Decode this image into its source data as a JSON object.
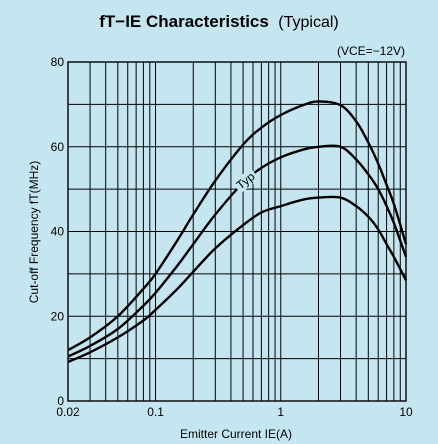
{
  "chart_data": {
    "type": "line",
    "title": {
      "bold": "fT−IE Characteristics",
      "normal": "(Typical)"
    },
    "condition": "(VCE=−12V)",
    "xlabel": "Emitter Current IE(A)",
    "ylabel": "Cut-off Frequency fT(MHz)",
    "x_scale": "log",
    "xlim": [
      0.02,
      10
    ],
    "ylim": [
      0,
      80
    ],
    "x_ticks": [
      {
        "value": 0.02,
        "label": "0.02"
      },
      {
        "value": 0.1,
        "label": "0.1"
      },
      {
        "value": 1,
        "label": "1"
      },
      {
        "value": 10,
        "label": "10"
      }
    ],
    "y_ticks": [
      {
        "value": 0,
        "label": "0"
      },
      {
        "value": 20,
        "label": "20"
      },
      {
        "value": 40,
        "label": "40"
      },
      {
        "value": 60,
        "label": "60"
      },
      {
        "value": 80,
        "label": "80"
      }
    ],
    "grid": true,
    "annotation": "Typ",
    "series": [
      {
        "x": [
          0.02,
          0.03,
          0.05,
          0.08,
          0.1,
          0.15,
          0.2,
          0.3,
          0.5,
          0.7,
          1,
          1.5,
          2,
          3,
          4,
          5,
          6,
          7,
          8,
          10
        ],
        "y": [
          12,
          15,
          20,
          26.5,
          30,
          38,
          44,
          52,
          60.5,
          64.5,
          67.5,
          69.8,
          70.7,
          69.8,
          66,
          61,
          56,
          51,
          46.5,
          37
        ]
      },
      {
        "x": [
          0.02,
          0.03,
          0.05,
          0.08,
          0.1,
          0.15,
          0.2,
          0.3,
          0.5,
          0.7,
          1,
          1.5,
          2,
          3,
          4,
          5,
          6,
          7,
          8,
          10
        ],
        "y": [
          10.5,
          13,
          17,
          22.5,
          25.5,
          32,
          37,
          44,
          51.5,
          55,
          57.5,
          59.3,
          60,
          60,
          57,
          53.5,
          50,
          46,
          42,
          34
        ]
      },
      {
        "x": [
          0.02,
          0.03,
          0.05,
          0.08,
          0.1,
          0.15,
          0.2,
          0.3,
          0.5,
          0.7,
          1,
          1.5,
          2,
          3,
          4,
          5,
          6,
          7,
          8,
          10
        ],
        "y": [
          9.2,
          11.5,
          15,
          19,
          21.5,
          26.5,
          30.5,
          36,
          41.5,
          44.5,
          46,
          47.5,
          48,
          48,
          46,
          43.5,
          40.5,
          37,
          34,
          28.5
        ]
      }
    ]
  }
}
